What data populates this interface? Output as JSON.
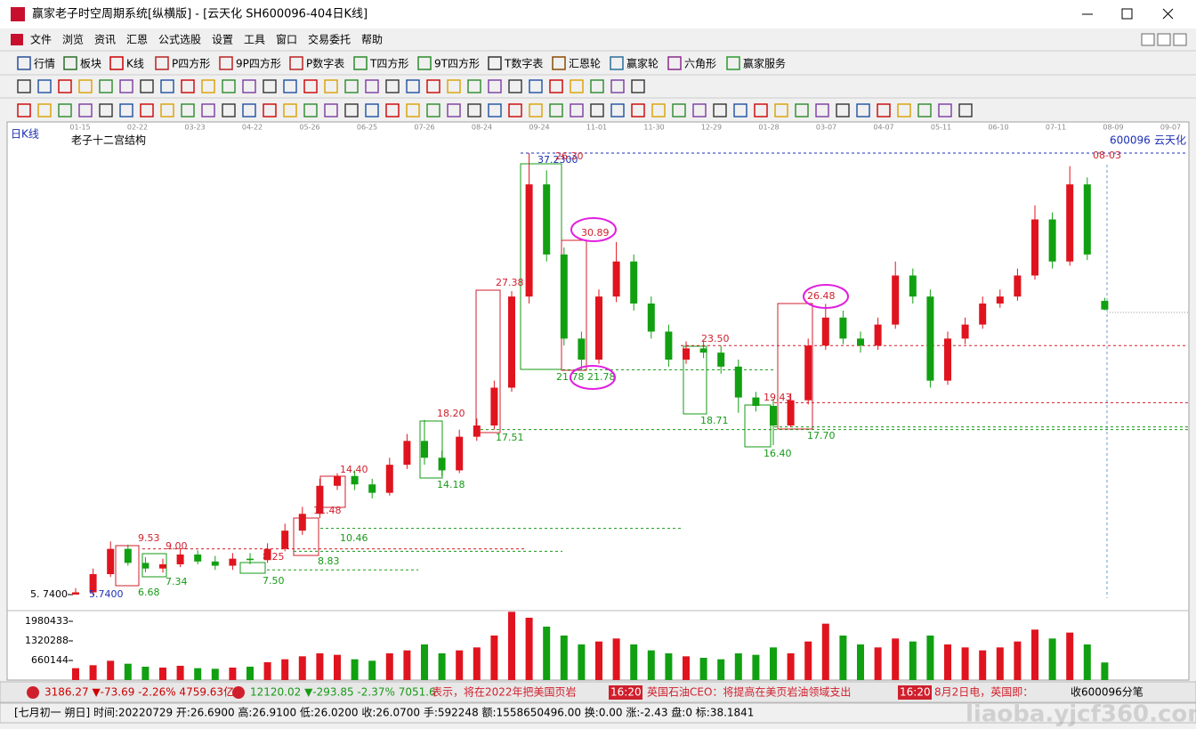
{
  "window": {
    "title": "赢家老子时空周期系统[纵横版] - [云天化  SH600096-404日K线]"
  },
  "menu": [
    "文件",
    "浏览",
    "资讯",
    "汇恩",
    "公式选股",
    "设置",
    "工具",
    "窗口",
    "交易委托",
    "帮助"
  ],
  "toolbar": [
    "行情",
    "板块",
    "K线",
    "P四方形",
    "9P四方形",
    "P数字表",
    "T四方形",
    "9T四方形",
    "T数字表",
    "汇恩轮",
    "赢家轮",
    "六角形",
    "赢家服务"
  ],
  "chart_data": {
    "type": "candlestick",
    "period_label": "日K线",
    "title": "老子十二宫结构",
    "code": "600096",
    "name": "云天化",
    "date_labels": [
      "01-15",
      "02-22",
      "03-23",
      "04-22",
      "05-26",
      "06-25",
      "07-26",
      "08-24",
      "09-24",
      "11-01",
      "11-30",
      "12-29",
      "01-28",
      "03-07",
      "04-07",
      "05-11",
      "06-10",
      "07-11",
      "08-09",
      "09-07"
    ],
    "up_color": "#e0141e",
    "down_color": "#11a011",
    "open": [
      5.74,
      5.9,
      7.2,
      9.0,
      8.0,
      7.6,
      7.9,
      8.6,
      8.1,
      7.8,
      8.3,
      8.2,
      9.0,
      10.3,
      11.5,
      13.5,
      14.2,
      13.6,
      13.0,
      15.0,
      16.7,
      15.5,
      14.6,
      17.0,
      17.8,
      20.5,
      27.0,
      35.0,
      30.0,
      24.0,
      22.5,
      27.0,
      29.5,
      26.5,
      24.5,
      22.5,
      23.3,
      23.0,
      22.0,
      19.8,
      19.2,
      17.8,
      19.6,
      23.5,
      25.5,
      24.0,
      23.5,
      25.0,
      28.5,
      27.0,
      21.0,
      24.0,
      25.0,
      26.5,
      27.0,
      28.5,
      32.5,
      29.5,
      35.0,
      26.69
    ],
    "high": [
      6.2,
      7.6,
      9.53,
      9.3,
      8.4,
      8.3,
      9.0,
      8.9,
      8.5,
      8.7,
      8.7,
      9.4,
      10.8,
      12.0,
      14.0,
      14.4,
      14.6,
      14.0,
      15.5,
      17.2,
      18.2,
      16.0,
      17.5,
      18.3,
      21.0,
      27.38,
      37.23,
      36.0,
      30.5,
      24.5,
      27.5,
      30.89,
      30.0,
      27.0,
      25.0,
      23.8,
      23.8,
      23.5,
      22.5,
      20.2,
      19.7,
      20.1,
      24.0,
      26.48,
      26.0,
      24.5,
      25.5,
      29.5,
      29.0,
      27.5,
      24.5,
      25.5,
      27.0,
      27.5,
      29.0,
      33.5,
      33.0,
      36.3,
      35.5,
      26.91
    ],
    "low": [
      5.74,
      5.7,
      7.0,
      7.8,
      7.34,
      7.3,
      7.7,
      7.9,
      7.5,
      7.5,
      7.9,
      8.0,
      8.83,
      10.0,
      11.2,
      13.2,
      13.2,
      12.6,
      12.8,
      14.7,
      15.0,
      14.18,
      14.4,
      16.7,
      17.51,
      20.2,
      26.5,
      29.5,
      23.5,
      21.78,
      22.2,
      26.6,
      26.0,
      24.0,
      22.0,
      22.2,
      22.6,
      21.5,
      18.71,
      18.8,
      16.4,
      17.7,
      19.3,
      23.2,
      23.6,
      23.0,
      23.2,
      24.7,
      26.5,
      20.5,
      20.7,
      23.6,
      24.7,
      26.2,
      26.7,
      28.2,
      29.0,
      29.2,
      29.6,
      26.02
    ],
    "close": [
      5.9,
      7.2,
      9.0,
      8.0,
      7.6,
      7.9,
      8.6,
      8.1,
      7.8,
      8.3,
      8.2,
      9.0,
      10.3,
      11.5,
      13.5,
      14.2,
      13.6,
      13.0,
      15.0,
      16.7,
      15.5,
      14.6,
      17.0,
      17.8,
      20.5,
      27.0,
      35.0,
      30.0,
      24.0,
      22.5,
      27.0,
      29.5,
      26.5,
      24.5,
      22.5,
      23.3,
      23.0,
      22.0,
      19.8,
      19.2,
      17.8,
      19.6,
      23.5,
      25.5,
      24.0,
      23.5,
      25.0,
      28.5,
      27.0,
      21.0,
      24.0,
      25.0,
      26.5,
      27.0,
      28.5,
      32.5,
      29.5,
      35.0,
      30.0,
      26.07
    ],
    "ylim": [
      4.66,
      38.12
    ],
    "yticks": [
      {
        "value": 5.74,
        "label": "5. 7400"
      }
    ],
    "annotations": [
      {
        "value": 37.23,
        "label": "37.2300",
        "color": "#1c2fb4"
      },
      {
        "value": 26.3,
        "label": "26.30",
        "color": "#d01f2c"
      },
      {
        "value": 30.89,
        "label": "30.89",
        "color": "#d01f2c"
      },
      {
        "value": 27.38,
        "label": "27.38",
        "color": "#d01f2c"
      },
      {
        "value": 21.78,
        "label": "21.78",
        "color": "#169a16"
      },
      {
        "value": 21.78,
        "label": "21.78",
        "color": "#169a16"
      },
      {
        "value": 23.5,
        "label": "23.50",
        "color": "#d01f2c"
      },
      {
        "value": 18.71,
        "label": "18.71",
        "color": "#169a16"
      },
      {
        "value": 19.43,
        "label": "19.43",
        "color": "#d01f2c"
      },
      {
        "value": 26.48,
        "label": "26.48",
        "color": "#d01f2c"
      },
      {
        "value": 17.7,
        "label": "17.70",
        "color": "#169a16"
      },
      {
        "value": 16.4,
        "label": "16.40",
        "color": "#169a16"
      },
      {
        "value": 18.2,
        "label": "18.20",
        "color": "#d01f2c"
      },
      {
        "value": 17.51,
        "label": "17.51",
        "color": "#169a16"
      },
      {
        "value": 14.18,
        "label": "14.18",
        "color": "#169a16"
      },
      {
        "value": 14.4,
        "label": "14.40",
        "color": "#d01f2c"
      },
      {
        "value": 11.48,
        "label": "11.48",
        "color": "#d01f2c"
      },
      {
        "value": 10.46,
        "label": "10.46",
        "color": "#169a16"
      },
      {
        "value": 8.83,
        "label": "8.83",
        "color": "#169a16"
      },
      {
        "value": 8.25,
        "label": "8.25",
        "color": "#d01f2c"
      },
      {
        "value": 7.5,
        "label": "7.50",
        "color": "#169a16"
      },
      {
        "value": 9.53,
        "label": "9.53",
        "color": "#d01f2c"
      },
      {
        "value": 9.0,
        "label": "9.00",
        "color": "#d01f2c"
      },
      {
        "value": 7.34,
        "label": "7.34",
        "color": "#169a16"
      },
      {
        "value": 6.68,
        "label": "6.68",
        "color": "#169a16"
      },
      {
        "value": 5.74,
        "label": "5.7400",
        "color": "#1c2fb4"
      },
      {
        "label": "08-03",
        "color": "#d01f2c"
      }
    ],
    "volume": {
      "values": [
        400000,
        500000,
        650000,
        550000,
        450000,
        420000,
        480000,
        400000,
        380000,
        420000,
        450000,
        600000,
        700000,
        800000,
        900000,
        850000,
        700000,
        650000,
        900000,
        1000000,
        1200000,
        900000,
        1000000,
        1100000,
        1500000,
        2300000,
        2100000,
        1800000,
        1500000,
        1200000,
        1300000,
        1400000,
        1200000,
        1000000,
        900000,
        800000,
        750000,
        700000,
        900000,
        850000,
        1100000,
        900000,
        1300000,
        1900000,
        1500000,
        1200000,
        1100000,
        1400000,
        1300000,
        1500000,
        1200000,
        1100000,
        1000000,
        1100000,
        1300000,
        1700000,
        1400000,
        1600000,
        1200000,
        592248
      ],
      "ylim": [
        0,
        2670000
      ],
      "yticks": [
        660144,
        1320288,
        1980433
      ]
    }
  },
  "status_bar": {
    "index1": "3186.27 ▼-73.69 -2.26% 4759.63亿",
    "index2": "12120.02 ▼-293.85 -2.37% 7051.6",
    "news": [
      "表示，将在2022年把美国页岩",
      "16:20",
      "英国石油CEO：将提高在美页岩油领域支出",
      "16:20",
      "8月2日电，英国即："
    ],
    "tick": "收600096分笔"
  },
  "info_bar": "[七月初一  朔日] 时间:20220729 开:26.6900 高:26.9100 低:26.0200 收:26.0700 手:592248 额:1558650496.00 换:0.00 涨:-2.43 盘:0 标:38.1841",
  "watermark": "liaoba.yjcf360.com"
}
